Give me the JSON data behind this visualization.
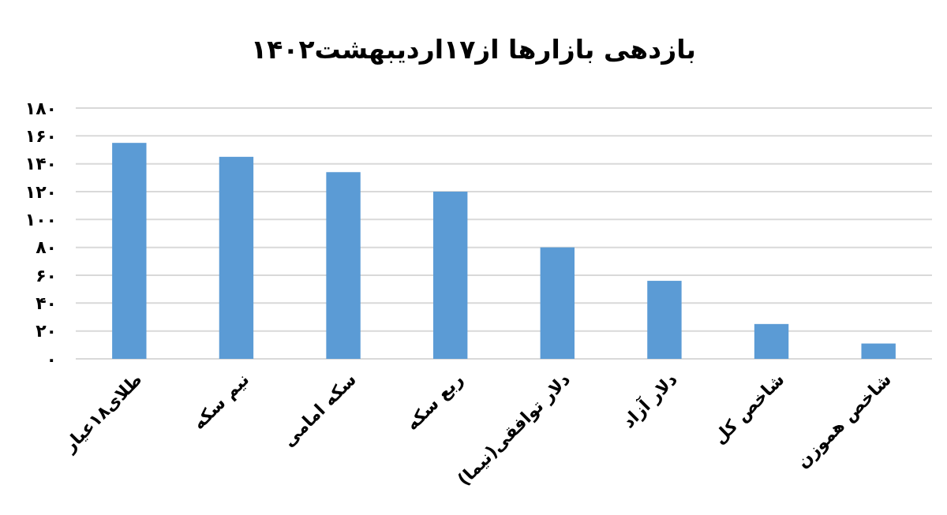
{
  "chart_data": {
    "type": "bar",
    "title": "بازدهی بازارها از۱۷اردیبهشت۱۴۰۲",
    "categories": [
      "طلای۱۸عیار",
      "نیم سکه",
      "سکه امامی",
      "ربع سکه",
      "دلار توافقی(نیما)",
      "دلار آزاد",
      "شاخص کل",
      "شاخص هموزن"
    ],
    "values": [
      155,
      145,
      134,
      120,
      80,
      56,
      25,
      11
    ],
    "color": "#5b9bd5",
    "ylim": [
      0,
      180
    ],
    "yticks": [
      {
        "value": 0,
        "label": "۰"
      },
      {
        "value": 20,
        "label": "۲۰"
      },
      {
        "value": 40,
        "label": "۴۰"
      },
      {
        "value": 60,
        "label": "۶۰"
      },
      {
        "value": 80,
        "label": "۸۰"
      },
      {
        "value": 100,
        "label": "۱۰۰"
      },
      {
        "value": 120,
        "label": "۱۲۰"
      },
      {
        "value": 140,
        "label": "۱۴۰"
      },
      {
        "value": 160,
        "label": "۱۶۰"
      },
      {
        "value": 180,
        "label": "۱۸۰"
      }
    ],
    "grid": true
  }
}
